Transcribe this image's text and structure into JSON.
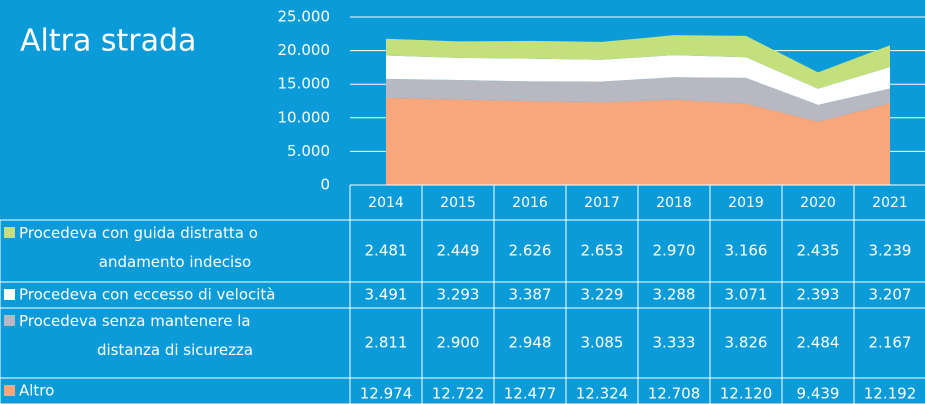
{
  "chart_data": {
    "type": "stacked_area",
    "title": "Altra strada",
    "categories": [
      "2014",
      "2015",
      "2016",
      "2017",
      "2018",
      "2019",
      "2020",
      "2021"
    ],
    "series": [
      {
        "name": "Procedeva con guida distratta o andamento indeciso",
        "color": "#c4e07c",
        "values": [
          2481,
          2449,
          2626,
          2653,
          2970,
          3166,
          2435,
          3239
        ],
        "value_labels": [
          "2.481",
          "2.449",
          "2.626",
          "2.653",
          "2.970",
          "3.166",
          "2.435",
          "3.239"
        ]
      },
      {
        "name": "Procedeva con eccesso di velocità",
        "color": "#ffffff",
        "values": [
          3491,
          3293,
          3387,
          3229,
          3288,
          3071,
          2393,
          3207
        ],
        "value_labels": [
          "3.491",
          "3.293",
          "3.387",
          "3.229",
          "3.288",
          "3.071",
          "2.393",
          "3.207"
        ]
      },
      {
        "name": "Procedeva senza mantenere la distanza di sicurezza",
        "color": "#b8b8c2",
        "values": [
          2811,
          2900,
          2948,
          3085,
          3333,
          3826,
          2484,
          2167
        ],
        "value_labels": [
          "2.811",
          "2.900",
          "2.948",
          "3.085",
          "3.333",
          "3.826",
          "2.484",
          "2.167"
        ]
      },
      {
        "name": "Altro",
        "color": "#f8a77c",
        "values": [
          12974,
          12722,
          12477,
          12324,
          12708,
          12120,
          9439,
          12192
        ],
        "value_labels": [
          "12.974",
          "12.722",
          "12.477",
          "12.324",
          "12.708",
          "12.120",
          "9.439",
          "12.192"
        ]
      }
    ],
    "ylim": [
      0,
      25000
    ],
    "yticks": [
      0,
      {
        "value": 5000,
        "label": "5.000"
      },
      {
        "value": 10000,
        "label": "10.000"
      },
      {
        "value": 15000,
        "label": "15.000"
      },
      {
        "value": 20000,
        "label": "20.000"
      },
      {
        "value": 25000,
        "label": "25.000"
      }
    ],
    "grid": true
  }
}
